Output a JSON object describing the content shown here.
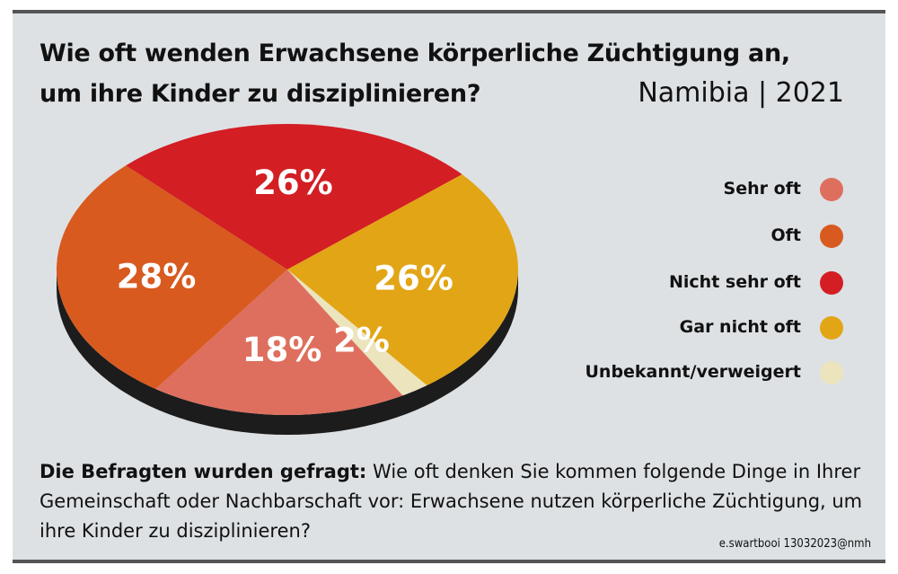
{
  "title": {
    "line1": "Wie oft wenden Erwachsene körperliche Züchtigung an,",
    "line2": "um ihre Kinder zu disziplinieren?",
    "subtitle": "Namibia | 2021"
  },
  "chart_data": {
    "type": "pie",
    "title": "Wie oft wenden Erwachsene körperliche Züchtigung an, um ihre Kinder zu disziplinieren?",
    "subtitle": "Namibia | 2021",
    "categories": [
      "Sehr oft",
      "Oft",
      "Nicht sehr oft",
      "Gar nicht oft",
      "Unbekannt/verweigert"
    ],
    "values": [
      18,
      28,
      26,
      26,
      2
    ],
    "unit": "%",
    "data_labels": [
      "18%",
      "28%",
      "26%",
      "26%",
      "2%"
    ],
    "colors": [
      "#de6f5e",
      "#d85a1f",
      "#d31e23",
      "#e2a515",
      "#ece4bd"
    ],
    "legend_position": "right"
  },
  "question": {
    "label": "Die Befragten wurden gefragt:",
    "text": "Wie oft denken Sie kommen folgende Dinge in Ihrer Gemeinschaft oder Nachbarschaft vor: Erwachsene nutzen körperliche Züchtigung, um ihre Kinder zu disziplinieren?"
  },
  "credit": "e.swartbooi 13032023@nmh"
}
